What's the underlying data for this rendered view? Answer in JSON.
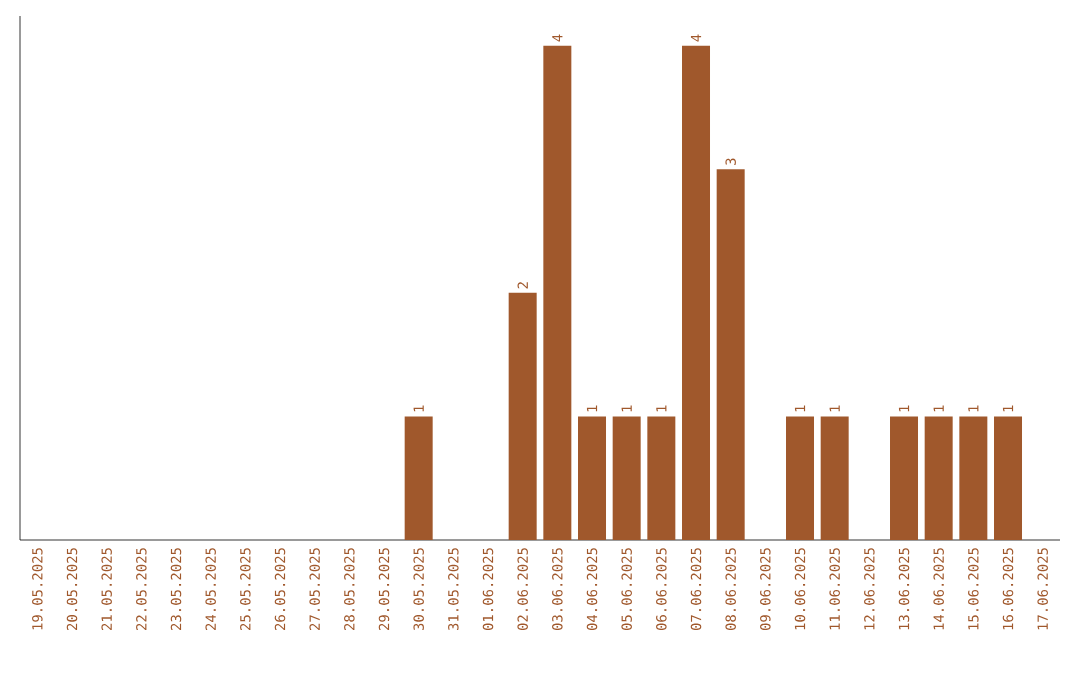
{
  "chart_data": {
    "type": "bar",
    "categories": [
      "19.05.2025",
      "20.05.2025",
      "21.05.2025",
      "22.05.2025",
      "23.05.2025",
      "24.05.2025",
      "25.05.2025",
      "26.05.2025",
      "27.05.2025",
      "28.05.2025",
      "29.05.2025",
      "30.05.2025",
      "31.05.2025",
      "01.06.2025",
      "02.06.2025",
      "03.06.2025",
      "04.06.2025",
      "05.06.2025",
      "06.06.2025",
      "07.06.2025",
      "08.06.2025",
      "09.06.2025",
      "10.06.2025",
      "11.06.2025",
      "12.06.2025",
      "13.06.2025",
      "14.06.2025",
      "15.06.2025",
      "16.06.2025",
      "17.06.2025"
    ],
    "values": [
      0,
      0,
      0,
      0,
      0,
      0,
      0,
      0,
      0,
      0,
      0,
      1,
      0,
      0,
      2,
      4,
      1,
      1,
      1,
      4,
      3,
      0,
      1,
      1,
      0,
      1,
      1,
      1,
      1,
      0
    ],
    "value_labels": [
      null,
      null,
      null,
      null,
      null,
      null,
      null,
      null,
      null,
      null,
      null,
      "1",
      null,
      null,
      "2",
      "4",
      "1",
      "1",
      "1",
      "4",
      "3",
      null,
      "1",
      "1",
      null,
      "1",
      "1",
      "1",
      "1",
      null
    ],
    "color": "#a0582c"
  }
}
